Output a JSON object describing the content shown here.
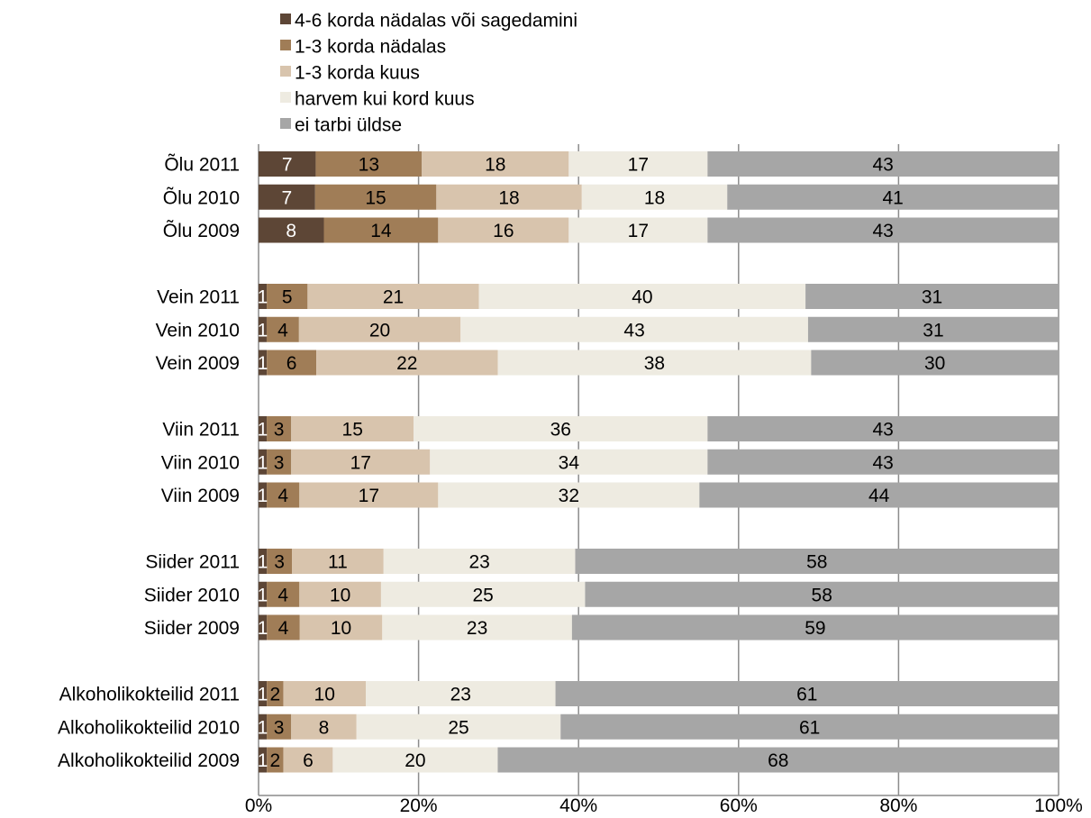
{
  "chart_data": {
    "type": "bar",
    "orientation": "horizontal",
    "stacked": "percent",
    "categories": [
      "Õlu 2011",
      "Õlu 2010",
      "Õlu 2009",
      "Vein 2011",
      "Vein 2010",
      "Vein 2009",
      "Viin 2011",
      "Viin 2010",
      "Viin 2009",
      "Siider 2011",
      "Siider 2010",
      "Siider 2009",
      "Alkoholikokteilid 2011",
      "Alkoholikokteilid 2010",
      "Alkoholikokteilid 2009"
    ],
    "groups": [
      3,
      3,
      3,
      3,
      3
    ],
    "series": [
      {
        "name": "4-6 korda nädalas või sagedamini",
        "color": "#5d4636",
        "label_color": "#ffffff",
        "values": [
          7,
          7,
          8,
          1,
          1,
          1,
          1,
          1,
          1,
          1,
          1,
          1,
          1,
          1,
          1
        ]
      },
      {
        "name": "1-3 korda nädalas",
        "color": "#a07d57",
        "label_color": "#000000",
        "values": [
          13,
          15,
          14,
          5,
          4,
          6,
          3,
          3,
          4,
          3,
          4,
          4,
          2,
          3,
          2
        ]
      },
      {
        "name": "1-3 korda kuus",
        "color": "#d8c4ad",
        "label_color": "#000000",
        "values": [
          18,
          18,
          16,
          21,
          20,
          22,
          15,
          17,
          17,
          11,
          10,
          10,
          10,
          8,
          6
        ]
      },
      {
        "name": "harvem kui kord kuus",
        "color": "#eeebe1",
        "label_color": "#000000",
        "values": [
          17,
          18,
          17,
          40,
          43,
          38,
          36,
          34,
          32,
          23,
          25,
          23,
          23,
          25,
          20
        ]
      },
      {
        "name": "ei tarbi üldse",
        "color": "#a6a6a6",
        "label_color": "#000000",
        "values": [
          43,
          41,
          43,
          31,
          31,
          30,
          43,
          43,
          44,
          58,
          58,
          59,
          61,
          61,
          68
        ]
      }
    ],
    "x_ticks": [
      "0%",
      "20%",
      "40%",
      "60%",
      "80%",
      "100%"
    ],
    "xlim": [
      0,
      100
    ],
    "grid": "vertical",
    "legend_position": "top"
  }
}
